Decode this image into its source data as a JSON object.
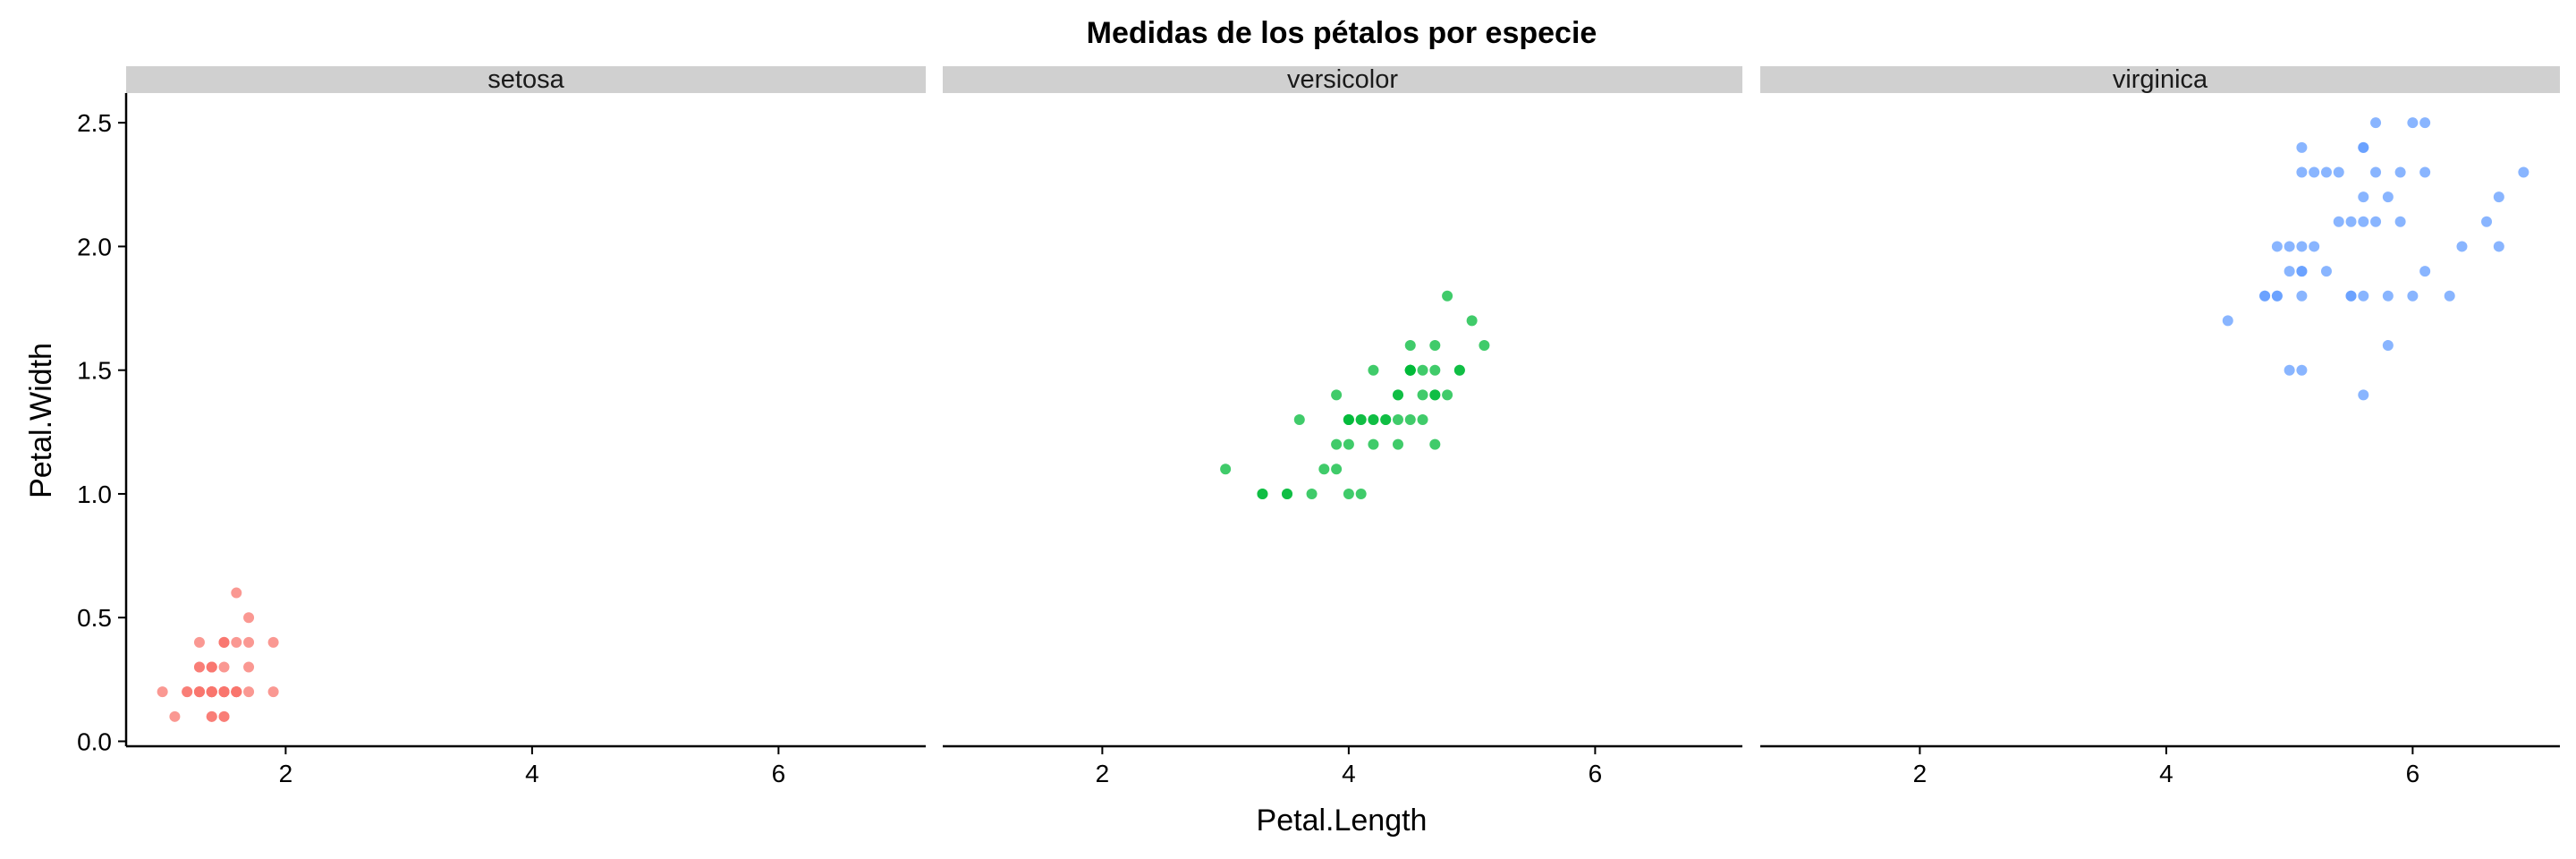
{
  "chart_data": {
    "type": "scatter",
    "title": "Medidas de los pétalos por especie",
    "xlabel": "Petal.Length",
    "ylabel": "Petal.Width",
    "xlim": [
      0.705,
      7.195
    ],
    "ylim": [
      -0.02,
      2.62
    ],
    "x_ticks": [
      2,
      4,
      6
    ],
    "y_ticks": [
      0.0,
      0.5,
      1.0,
      1.5,
      2.0,
      2.5
    ],
    "y_tick_labels": [
      "0.0",
      "0.5",
      "1.0",
      "1.5",
      "2.0",
      "2.5"
    ],
    "grid": false,
    "legend": "none",
    "facets": [
      {
        "name": "setosa",
        "color": "#F8766D",
        "points": [
          [
            1.4,
            0.2
          ],
          [
            1.4,
            0.2
          ],
          [
            1.3,
            0.2
          ],
          [
            1.5,
            0.2
          ],
          [
            1.4,
            0.2
          ],
          [
            1.7,
            0.4
          ],
          [
            1.4,
            0.3
          ],
          [
            1.5,
            0.2
          ],
          [
            1.4,
            0.2
          ],
          [
            1.5,
            0.1
          ],
          [
            1.5,
            0.2
          ],
          [
            1.6,
            0.2
          ],
          [
            1.4,
            0.1
          ],
          [
            1.1,
            0.1
          ],
          [
            1.2,
            0.2
          ],
          [
            1.5,
            0.4
          ],
          [
            1.3,
            0.4
          ],
          [
            1.4,
            0.3
          ],
          [
            1.7,
            0.3
          ],
          [
            1.5,
            0.3
          ],
          [
            1.7,
            0.2
          ],
          [
            1.5,
            0.4
          ],
          [
            1.0,
            0.2
          ],
          [
            1.7,
            0.5
          ],
          [
            1.9,
            0.2
          ],
          [
            1.6,
            0.2
          ],
          [
            1.6,
            0.4
          ],
          [
            1.5,
            0.2
          ],
          [
            1.4,
            0.2
          ],
          [
            1.6,
            0.2
          ],
          [
            1.6,
            0.2
          ],
          [
            1.5,
            0.4
          ],
          [
            1.5,
            0.1
          ],
          [
            1.4,
            0.2
          ],
          [
            1.5,
            0.2
          ],
          [
            1.2,
            0.2
          ],
          [
            1.3,
            0.2
          ],
          [
            1.4,
            0.1
          ],
          [
            1.3,
            0.2
          ],
          [
            1.5,
            0.2
          ],
          [
            1.3,
            0.3
          ],
          [
            1.3,
            0.3
          ],
          [
            1.3,
            0.2
          ],
          [
            1.6,
            0.6
          ],
          [
            1.9,
            0.4
          ],
          [
            1.4,
            0.3
          ],
          [
            1.6,
            0.2
          ],
          [
            1.4,
            0.2
          ],
          [
            1.5,
            0.2
          ],
          [
            1.4,
            0.2
          ]
        ]
      },
      {
        "name": "versicolor",
        "color": "#00BA38",
        "points": [
          [
            4.7,
            1.4
          ],
          [
            4.5,
            1.5
          ],
          [
            4.9,
            1.5
          ],
          [
            4.0,
            1.3
          ],
          [
            4.6,
            1.5
          ],
          [
            4.5,
            1.3
          ],
          [
            4.7,
            1.6
          ],
          [
            3.3,
            1.0
          ],
          [
            4.6,
            1.3
          ],
          [
            3.9,
            1.4
          ],
          [
            3.5,
            1.0
          ],
          [
            4.2,
            1.5
          ],
          [
            4.0,
            1.0
          ],
          [
            4.7,
            1.4
          ],
          [
            3.6,
            1.3
          ],
          [
            4.4,
            1.4
          ],
          [
            4.5,
            1.5
          ],
          [
            4.1,
            1.0
          ],
          [
            4.5,
            1.5
          ],
          [
            3.9,
            1.1
          ],
          [
            4.8,
            1.8
          ],
          [
            4.0,
            1.3
          ],
          [
            4.9,
            1.5
          ],
          [
            4.7,
            1.2
          ],
          [
            4.3,
            1.3
          ],
          [
            4.4,
            1.4
          ],
          [
            4.8,
            1.4
          ],
          [
            5.0,
            1.7
          ],
          [
            4.5,
            1.5
          ],
          [
            3.5,
            1.0
          ],
          [
            3.8,
            1.1
          ],
          [
            3.7,
            1.0
          ],
          [
            3.9,
            1.2
          ],
          [
            5.1,
            1.6
          ],
          [
            4.5,
            1.5
          ],
          [
            4.5,
            1.6
          ],
          [
            4.7,
            1.5
          ],
          [
            4.4,
            1.3
          ],
          [
            4.1,
            1.3
          ],
          [
            4.0,
            1.3
          ],
          [
            4.4,
            1.2
          ],
          [
            4.6,
            1.4
          ],
          [
            4.0,
            1.2
          ],
          [
            3.3,
            1.0
          ],
          [
            4.2,
            1.3
          ],
          [
            4.2,
            1.2
          ],
          [
            4.2,
            1.3
          ],
          [
            4.3,
            1.3
          ],
          [
            3.0,
            1.1
          ],
          [
            4.1,
            1.3
          ]
        ]
      },
      {
        "name": "virginica",
        "color": "#619CFF",
        "points": [
          [
            6.0,
            2.5
          ],
          [
            5.1,
            1.9
          ],
          [
            5.9,
            2.1
          ],
          [
            5.6,
            1.8
          ],
          [
            5.8,
            2.2
          ],
          [
            6.6,
            2.1
          ],
          [
            4.5,
            1.7
          ],
          [
            6.3,
            1.8
          ],
          [
            5.8,
            1.8
          ],
          [
            6.1,
            2.5
          ],
          [
            5.1,
            2.0
          ],
          [
            5.3,
            1.9
          ],
          [
            5.5,
            2.1
          ],
          [
            5.0,
            2.0
          ],
          [
            5.1,
            2.4
          ],
          [
            5.3,
            2.3
          ],
          [
            5.5,
            1.8
          ],
          [
            6.7,
            2.2
          ],
          [
            6.9,
            2.3
          ],
          [
            5.0,
            1.5
          ],
          [
            5.7,
            2.3
          ],
          [
            4.9,
            2.0
          ],
          [
            6.7,
            2.0
          ],
          [
            4.9,
            1.8
          ],
          [
            5.7,
            2.1
          ],
          [
            6.0,
            1.8
          ],
          [
            4.8,
            1.8
          ],
          [
            4.9,
            1.8
          ],
          [
            5.6,
            2.1
          ],
          [
            5.8,
            1.6
          ],
          [
            6.1,
            1.9
          ],
          [
            6.4,
            2.0
          ],
          [
            5.6,
            2.2
          ],
          [
            5.1,
            1.5
          ],
          [
            5.6,
            1.4
          ],
          [
            6.1,
            2.3
          ],
          [
            5.6,
            2.4
          ],
          [
            5.5,
            1.8
          ],
          [
            4.8,
            1.8
          ],
          [
            5.4,
            2.1
          ],
          [
            5.6,
            2.4
          ],
          [
            5.1,
            2.3
          ],
          [
            5.1,
            1.9
          ],
          [
            5.9,
            2.3
          ],
          [
            5.7,
            2.5
          ],
          [
            5.2,
            2.3
          ],
          [
            5.0,
            1.9
          ],
          [
            5.2,
            2.0
          ],
          [
            5.4,
            2.3
          ],
          [
            5.1,
            1.8
          ]
        ]
      }
    ]
  }
}
